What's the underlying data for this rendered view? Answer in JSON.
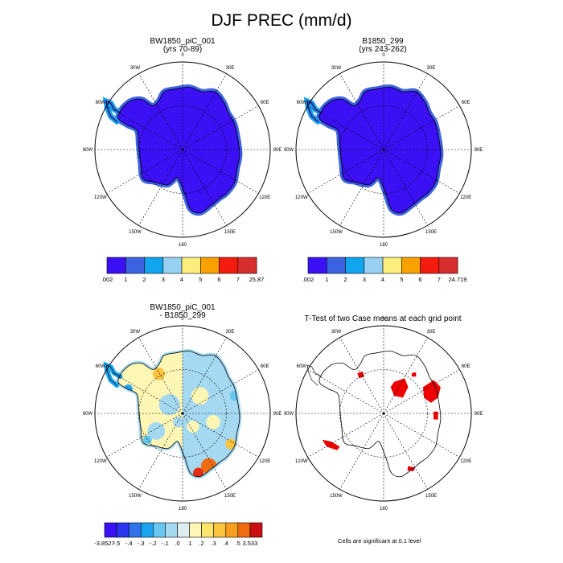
{
  "title": "DJF PREC (mm/d)",
  "colors": {
    "precip_scale": [
      "#3b10f5",
      "#3c64e2",
      "#11a5ef",
      "#97d0f0",
      "#fbee7c",
      "#f8a100",
      "#f41c0d",
      "#d62e2e"
    ],
    "diff_scale": [
      "#3b10f5",
      "#2a36f0",
      "#3271ea",
      "#1aa3f0",
      "#66c7ef",
      "#a5d9f2",
      "#ddeef3",
      "#fdf6b5",
      "#ffe66b",
      "#fbc33e",
      "#f89f1e",
      "#f06c10",
      "#e52c12",
      "#c90f0f"
    ],
    "significant": "#ee0000"
  },
  "panels": [
    {
      "id": "bw1850",
      "title_line1": "BW1850_piC_001",
      "title_line2": "(yrs 70-89)"
    },
    {
      "id": "b1850",
      "title_line1": "B1850_299",
      "title_line2": "(yrs 243-262)"
    },
    {
      "id": "diff",
      "title_line1": "BW1850_piC_001",
      "title_line2": "- B1850_299"
    },
    {
      "id": "ttest",
      "title_line1": "T-Test of two Case means at each grid point",
      "title_line2": ""
    }
  ],
  "map_labels": {
    "lon_0": "0",
    "lon_30e": "30E",
    "lon_60e": "60E",
    "lon_90e": "90E",
    "lon_120e": "120E",
    "lon_150e": "150E",
    "lon_180": "180",
    "lon_150w": "150W",
    "lon_120w": "120W",
    "lon_90w": "90W",
    "lon_60w": "60W",
    "lon_30w": "30W"
  },
  "colorbars": [
    {
      "labels": [
        ".002",
        "1",
        "2",
        "3",
        "4",
        "5",
        "6",
        "7",
        "25.87"
      ]
    },
    {
      "labels": [
        ".002",
        "1",
        "2",
        "3",
        "4",
        "5",
        "6",
        "7",
        "24.719"
      ]
    },
    {
      "labels": [
        "-3.8527",
        "-.5",
        "-.4",
        "-.3",
        "-.2",
        "-.1",
        ".0",
        ".1",
        ".2",
        ".3",
        ".4",
        ".5",
        "3.533"
      ]
    }
  ],
  "ttest_note": "Cells are significant at 0.1 level"
}
